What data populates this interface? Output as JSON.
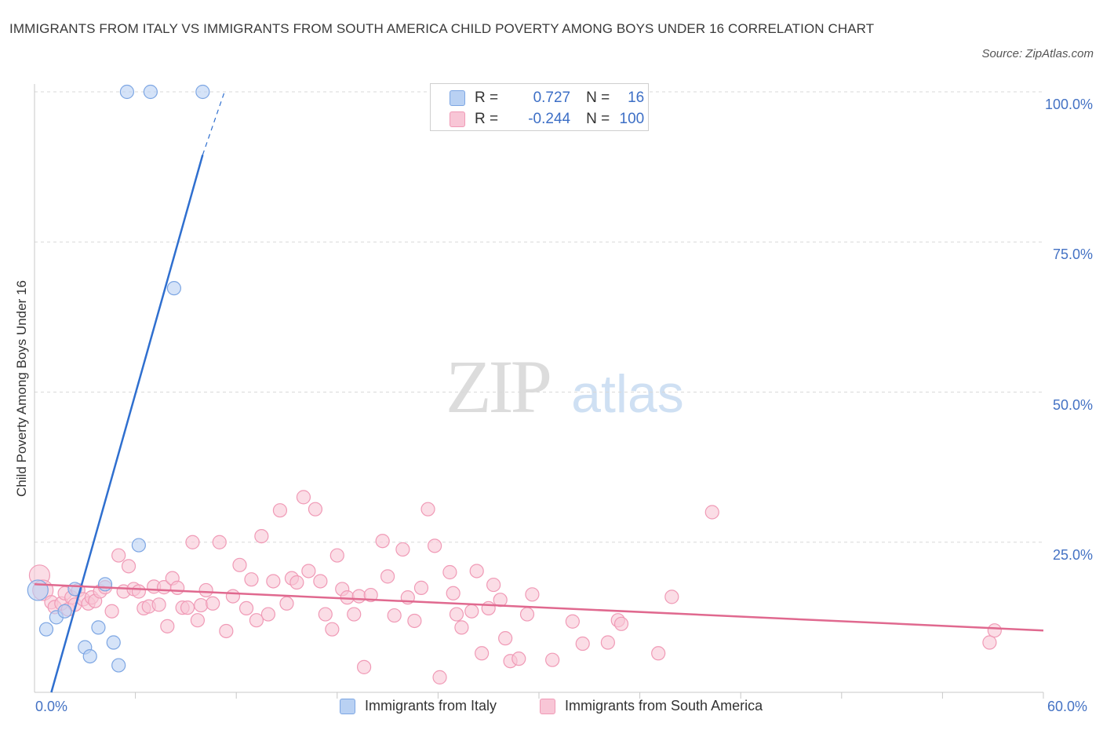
{
  "header": {
    "title": "IMMIGRANTS FROM ITALY VS IMMIGRANTS FROM SOUTH AMERICA CHILD POVERTY AMONG BOYS UNDER 16 CORRELATION CHART",
    "source": "Source: ZipAtlas.com"
  },
  "watermark": {
    "zip": "ZIP",
    "atlas": "atlas"
  },
  "legend": {
    "r_label": "R =",
    "n_label": "N =",
    "italy": {
      "r": "0.727",
      "n": "16"
    },
    "south_america": {
      "r": "-0.244",
      "n": "100"
    }
  },
  "colors": {
    "italy_fill": "#b9d1f3",
    "italy_stroke": "#7da6e3",
    "italy_line": "#2f6fcf",
    "sa_fill": "#f8c6d6",
    "sa_stroke": "#f09ab6",
    "sa_line": "#e0698f",
    "tick_label": "#4472c4",
    "grid": "#d9d9d9"
  },
  "chart_data": {
    "type": "scatter",
    "title": "IMMIGRANTS FROM ITALY VS IMMIGRANTS FROM SOUTH AMERICA CHILD POVERTY AMONG BOYS UNDER 16 CORRELATION CHART",
    "xlabel": "",
    "ylabel": "Child Poverty Among Boys Under 16",
    "xlim": [
      0,
      60
    ],
    "ylim": [
      0,
      100
    ],
    "x_tick_labels": [
      "0.0%",
      "60.0%"
    ],
    "y_ticks": [
      25,
      50,
      75,
      100
    ],
    "y_tick_labels": [
      "25.0%",
      "50.0%",
      "75.0%",
      "100.0%"
    ],
    "legend_position": "bottom",
    "series": [
      {
        "name": "Immigrants from Italy",
        "r": 0.727,
        "n": 16,
        "trend": {
          "x0": 1.0,
          "y0": 0.0,
          "x1": 10.0,
          "y1": 89.5,
          "dash_to_x": 11.3,
          "dash_to_y": 100
        },
        "points": [
          [
            0.2,
            17.0,
            "large"
          ],
          [
            0.7,
            10.5
          ],
          [
            1.3,
            12.5
          ],
          [
            1.8,
            13.5
          ],
          [
            2.4,
            17.2
          ],
          [
            3.0,
            7.5
          ],
          [
            3.3,
            6.0
          ],
          [
            3.8,
            10.8
          ],
          [
            4.2,
            18.0
          ],
          [
            4.7,
            8.3
          ],
          [
            5.0,
            4.5
          ],
          [
            6.2,
            24.5
          ],
          [
            8.3,
            67.3
          ],
          [
            5.5,
            100
          ],
          [
            6.9,
            100
          ],
          [
            10.0,
            100
          ]
        ]
      },
      {
        "name": "Immigrants from South America",
        "r": -0.244,
        "n": 100,
        "trend": {
          "x0": 0.0,
          "y0": 18.0,
          "x1": 60.0,
          "y1": 10.3
        },
        "points": [
          [
            0.3,
            19.5,
            "large"
          ],
          [
            0.5,
            17.0,
            "large"
          ],
          [
            1.0,
            15.0
          ],
          [
            1.2,
            14.2
          ],
          [
            1.6,
            14.8
          ],
          [
            1.8,
            16.5
          ],
          [
            2.0,
            13.8
          ],
          [
            2.2,
            15.8
          ],
          [
            2.4,
            14.6
          ],
          [
            2.6,
            17.0
          ],
          [
            2.9,
            15.5
          ],
          [
            3.2,
            14.8
          ],
          [
            3.4,
            15.8
          ],
          [
            3.6,
            15.2
          ],
          [
            3.9,
            16.8
          ],
          [
            4.2,
            17.5
          ],
          [
            4.6,
            13.5
          ],
          [
            5.0,
            22.8
          ],
          [
            5.3,
            16.8
          ],
          [
            5.6,
            21.0
          ],
          [
            5.9,
            17.2
          ],
          [
            6.2,
            16.8
          ],
          [
            6.5,
            14.0
          ],
          [
            6.8,
            14.3
          ],
          [
            7.1,
            17.6
          ],
          [
            7.4,
            14.6
          ],
          [
            7.7,
            17.5
          ],
          [
            7.9,
            11.0
          ],
          [
            8.2,
            19.0
          ],
          [
            8.5,
            17.4
          ],
          [
            8.8,
            14.1
          ],
          [
            9.1,
            14.1
          ],
          [
            9.4,
            25.0
          ],
          [
            9.7,
            12.0
          ],
          [
            9.9,
            14.5
          ],
          [
            10.2,
            17.0
          ],
          [
            10.6,
            14.8
          ],
          [
            11.0,
            25.0
          ],
          [
            11.4,
            10.2
          ],
          [
            11.8,
            16.0
          ],
          [
            12.2,
            21.2
          ],
          [
            12.6,
            14.0
          ],
          [
            12.9,
            18.8
          ],
          [
            13.2,
            12.0
          ],
          [
            13.5,
            26.0
          ],
          [
            13.9,
            13.0
          ],
          [
            14.2,
            18.5
          ],
          [
            14.6,
            30.3
          ],
          [
            15.0,
            14.8
          ],
          [
            15.3,
            19.0
          ],
          [
            15.6,
            18.3
          ],
          [
            16.0,
            32.5
          ],
          [
            16.3,
            20.2
          ],
          [
            16.7,
            30.5
          ],
          [
            17.0,
            18.5
          ],
          [
            17.3,
            13.0
          ],
          [
            17.7,
            10.5
          ],
          [
            18.0,
            22.8
          ],
          [
            18.3,
            17.2
          ],
          [
            18.6,
            15.8
          ],
          [
            19.0,
            13.0
          ],
          [
            19.3,
            16.0
          ],
          [
            19.6,
            4.2
          ],
          [
            20.0,
            16.2
          ],
          [
            20.7,
            25.2
          ],
          [
            21.0,
            19.3
          ],
          [
            21.4,
            12.8
          ],
          [
            21.9,
            23.8
          ],
          [
            22.2,
            15.8
          ],
          [
            22.6,
            11.9
          ],
          [
            23.0,
            17.4
          ],
          [
            23.4,
            30.5
          ],
          [
            23.8,
            24.4
          ],
          [
            24.1,
            2.5
          ],
          [
            24.7,
            20.0
          ],
          [
            24.9,
            16.5
          ],
          [
            25.1,
            13.0
          ],
          [
            25.4,
            10.8
          ],
          [
            26.0,
            13.5
          ],
          [
            26.3,
            20.2
          ],
          [
            26.6,
            6.5
          ],
          [
            27.0,
            14.0
          ],
          [
            27.3,
            17.9
          ],
          [
            27.7,
            15.4
          ],
          [
            28.0,
            9.0
          ],
          [
            28.3,
            5.2
          ],
          [
            28.8,
            5.6
          ],
          [
            29.3,
            13.0
          ],
          [
            29.6,
            16.3
          ],
          [
            30.8,
            5.4
          ],
          [
            32.0,
            11.8
          ],
          [
            32.6,
            8.1
          ],
          [
            34.1,
            8.3
          ],
          [
            34.7,
            12.0
          ],
          [
            34.9,
            11.4
          ],
          [
            37.1,
            6.5
          ],
          [
            37.9,
            15.9
          ],
          [
            40.3,
            30.0
          ],
          [
            56.8,
            8.3
          ],
          [
            57.1,
            10.3
          ]
        ]
      }
    ]
  },
  "legend_bottom": {
    "italy_label": "Immigrants from Italy",
    "sa_label": "Immigrants from South America"
  }
}
